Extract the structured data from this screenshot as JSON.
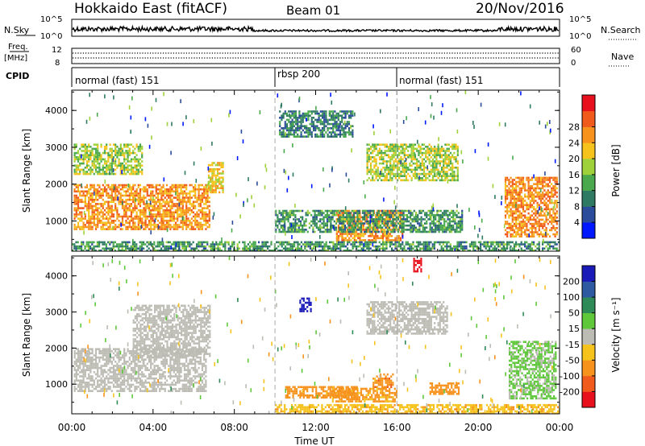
{
  "header": {
    "station": "Hokkaido East (fitACF)",
    "beam": "Beam 01",
    "date": "20/Nov/2016"
  },
  "noise_panel": {
    "left_label": "N.Sky",
    "left_ticks": [
      "10^5",
      "10^0"
    ],
    "right_ticks": [
      "10^5",
      "10^0"
    ],
    "right_label": "N.Search"
  },
  "freq_panel": {
    "left_label_top": "Freq.",
    "left_label_bottom": "[MHz]",
    "left_ticks": [
      "12",
      "8"
    ],
    "right_ticks": [
      "60",
      "0"
    ],
    "right_label": "Nave"
  },
  "cpid_panel": {
    "label": "CPID",
    "segments": [
      {
        "label": "normal (fast) 151",
        "start_hour": 0,
        "end_hour": 10
      },
      {
        "label": "rbsp 200",
        "start_hour": 10,
        "end_hour": 16
      },
      {
        "label": "normal (fast) 151",
        "start_hour": 16,
        "end_hour": 24
      }
    ]
  },
  "x_axis": {
    "title": "Time UT",
    "tick_labels": [
      "00:00",
      "04:00",
      "08:00",
      "12:00",
      "16:00",
      "20:00",
      "00:00"
    ]
  },
  "chart_data": [
    {
      "type": "heatmap",
      "name": "power",
      "ylabel": "Slant Range [km]",
      "yticks": [
        "1000",
        "2000",
        "3000",
        "4000"
      ],
      "colorbar_title": "Power [dB]",
      "colorbar_ticks": [
        "4",
        "8",
        "12",
        "16",
        "20",
        "24",
        "28"
      ],
      "colorbar_colors": [
        "#0018ff",
        "#2a4c9a",
        "#2f7a63",
        "#49a94c",
        "#9fd13a",
        "#f6c31d",
        "#f7931d",
        "#f05a1b",
        "#e8101c"
      ],
      "xlim_hours": [
        0,
        24
      ],
      "ylim_km": [
        180,
        4550
      ],
      "regions": [
        {
          "t0": 0.1,
          "t1": 6.8,
          "r0": 800,
          "r1": 2000,
          "level": 26
        },
        {
          "t0": 0.1,
          "t1": 3.5,
          "r0": 2300,
          "r1": 3100,
          "level": 18
        },
        {
          "t0": 6.7,
          "t1": 7.4,
          "r0": 1800,
          "r1": 2600,
          "level": 22
        },
        {
          "t0": 13.0,
          "t1": 16.3,
          "r0": 500,
          "r1": 1300,
          "level": 26
        },
        {
          "t0": 10.0,
          "t1": 19.2,
          "r0": 700,
          "r1": 1300,
          "level": 12
        },
        {
          "t0": 14.5,
          "t1": 19.0,
          "r0": 2100,
          "r1": 3100,
          "level": 18
        },
        {
          "t0": 10.2,
          "t1": 13.8,
          "r0": 3300,
          "r1": 4000,
          "level": 10
        },
        {
          "t0": 21.3,
          "t1": 23.9,
          "r0": 600,
          "r1": 2200,
          "level": 27
        },
        {
          "t0": 0.0,
          "t1": 24.0,
          "r0": 180,
          "r1": 450,
          "level": 12
        }
      ]
    },
    {
      "type": "heatmap",
      "name": "velocity",
      "ylabel": "Slant Range [km]",
      "yticks": [
        "1000",
        "2000",
        "3000",
        "4000"
      ],
      "colorbar_title": "Velocity [m s⁻¹]",
      "colorbar_ticks": [
        "200",
        "100",
        "50",
        "15",
        "-15",
        "-50",
        "-100",
        "-200"
      ],
      "colorbar_colors": [
        "#1a1ab8",
        "#2d5aa0",
        "#2e8b57",
        "#5ec83a",
        "#bcbcb4",
        "#f6c31d",
        "#f7931d",
        "#f05a1b",
        "#e8101c"
      ],
      "xlim_hours": [
        0,
        24
      ],
      "ylim_km": [
        180,
        4550
      ],
      "regions": [
        {
          "t0": 0.1,
          "t1": 6.6,
          "r0": 800,
          "r1": 2000,
          "level": 0
        },
        {
          "t0": 3.0,
          "t1": 6.8,
          "r0": 1800,
          "r1": 3200,
          "level": 0
        },
        {
          "t0": 12.8,
          "t1": 16.0,
          "r0": 500,
          "r1": 900,
          "level": -60
        },
        {
          "t0": 10.5,
          "t1": 14.0,
          "r0": 650,
          "r1": 950,
          "level": -80
        },
        {
          "t0": 14.8,
          "t1": 15.8,
          "r0": 900,
          "r1": 1300,
          "level": -90
        },
        {
          "t0": 14.5,
          "t1": 18.5,
          "r0": 2400,
          "r1": 3300,
          "level": 0
        },
        {
          "t0": 17.6,
          "t1": 19.0,
          "r0": 750,
          "r1": 1050,
          "level": -70
        },
        {
          "t0": 21.5,
          "t1": 23.8,
          "r0": 600,
          "r1": 2200,
          "level": 20
        },
        {
          "t0": 10.0,
          "t1": 24.0,
          "r0": 180,
          "r1": 450,
          "level": -40
        },
        {
          "t0": 16.8,
          "t1": 17.2,
          "r0": 4100,
          "r1": 4500,
          "level": -220
        },
        {
          "t0": 11.2,
          "t1": 11.8,
          "r0": 3000,
          "r1": 3400,
          "level": 220
        }
      ]
    }
  ]
}
